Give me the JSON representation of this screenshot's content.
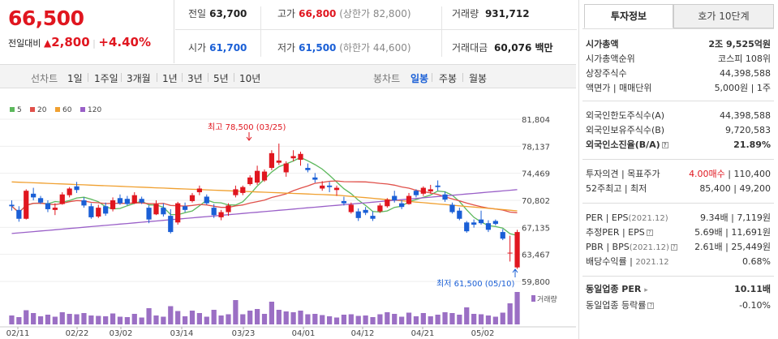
{
  "quote": {
    "price": "66,500",
    "change_label": "전일대비",
    "change_arrow": "▲",
    "change": "2,800",
    "change_pct": "+4.40%",
    "prev_label": "전일",
    "prev": "63,700",
    "high_label": "고가",
    "high": "66,800",
    "upper_limit": "(상한가 82,800)",
    "volume_label": "거래량",
    "volume": "931,712",
    "open_label": "시가",
    "open": "61,700",
    "low_label": "저가",
    "low": "61,500",
    "lower_limit": "(하한가 44,600)",
    "amount_label": "거래대금",
    "amount": "60,076 백만"
  },
  "period_bar": {
    "line_label": "선차트",
    "line_options": [
      "1일",
      "1주일",
      "3개월",
      "1년",
      "3년",
      "5년",
      "10년"
    ],
    "candle_label": "봉차트",
    "candle_options": [
      "일봉",
      "주봉",
      "월봉"
    ],
    "candle_selected": "일봉"
  },
  "chart_data": {
    "type": "candlestick",
    "legend": [
      {
        "name": "5",
        "color": "#5cb85c"
      },
      {
        "name": "20",
        "color": "#e0504a"
      },
      {
        "name": "60",
        "color": "#f0a030"
      },
      {
        "name": "120",
        "color": "#9a60c8"
      }
    ],
    "y_ticks": [
      "81,804",
      "78,137",
      "74,469",
      "70,802",
      "67,135",
      "63,467",
      "59,800"
    ],
    "ylim": [
      59800,
      81804
    ],
    "x_ticks": [
      "02/11",
      "02/22",
      "03/02",
      "03/14",
      "03/23",
      "04/01",
      "04/12",
      "04/21",
      "05/02"
    ],
    "volume_label": "거래량",
    "high_annotation": "최고 78,500 (03/25)",
    "low_annotation": "최저 61,500 (05/10)",
    "candles": [
      [
        70200,
        70800,
        69400,
        70000
      ],
      [
        69500,
        70000,
        67900,
        68300
      ],
      [
        68300,
        72300,
        68200,
        72100
      ],
      [
        71700,
        72500,
        70800,
        71200
      ],
      [
        71100,
        71400,
        70300,
        70500
      ],
      [
        70400,
        70800,
        69200,
        69600
      ],
      [
        69500,
        70400,
        68800,
        69800
      ],
      [
        70300,
        71900,
        70200,
        71600
      ],
      [
        71500,
        72600,
        71200,
        72400
      ],
      [
        72700,
        73300,
        71800,
        72200
      ],
      [
        70800,
        71200,
        69800,
        70100
      ],
      [
        70000,
        70400,
        68300,
        68500
      ],
      [
        68600,
        70200,
        68400,
        69800
      ],
      [
        70000,
        70500,
        68700,
        69000
      ],
      [
        69600,
        71200,
        69300,
        70800
      ],
      [
        71100,
        71600,
        70200,
        70400
      ],
      [
        71000,
        71400,
        70100,
        70300
      ],
      [
        70400,
        71900,
        70300,
        71500
      ],
      [
        71000,
        71300,
        70300,
        70500
      ],
      [
        69800,
        70100,
        67700,
        68200
      ],
      [
        68900,
        70800,
        68800,
        70300
      ],
      [
        69800,
        70400,
        68600,
        68900
      ],
      [
        68700,
        69600,
        66300,
        66500
      ],
      [
        67800,
        70600,
        67500,
        70400
      ],
      [
        70000,
        70500,
        69200,
        69500
      ],
      [
        70700,
        71800,
        70500,
        71500
      ],
      [
        71900,
        72800,
        71500,
        72400
      ],
      [
        71300,
        71600,
        70200,
        70400
      ],
      [
        69800,
        70300,
        68400,
        68800
      ],
      [
        68500,
        69500,
        68100,
        69200
      ],
      [
        69200,
        70400,
        68700,
        70100
      ],
      [
        71500,
        72800,
        71200,
        72300
      ],
      [
        71800,
        72800,
        71500,
        72600
      ],
      [
        73000,
        74200,
        72800,
        73900
      ],
      [
        73200,
        75500,
        72900,
        74800
      ],
      [
        73500,
        75000,
        73300,
        74700
      ],
      [
        75200,
        77600,
        74900,
        77200
      ],
      [
        75900,
        78500,
        75600,
        76200
      ],
      [
        74600,
        76100,
        74000,
        75800
      ],
      [
        76500,
        77600,
        76100,
        76800
      ],
      [
        76300,
        77400,
        75500,
        77100
      ],
      [
        75200,
        75800,
        74600,
        74900
      ],
      [
        73900,
        74500,
        73200,
        73600
      ],
      [
        72400,
        73400,
        72100,
        72800
      ],
      [
        72800,
        73300,
        71900,
        72600
      ],
      [
        72200,
        72800,
        71400,
        72500
      ],
      [
        70700,
        71300,
        70100,
        70400
      ],
      [
        69200,
        70500,
        69000,
        70200
      ],
      [
        69300,
        69700,
        68000,
        68400
      ],
      [
        69500,
        69900,
        68800,
        69100
      ],
      [
        68700,
        69300,
        68000,
        68300
      ],
      [
        69300,
        70400,
        69100,
        70100
      ],
      [
        70000,
        71100,
        69800,
        70900
      ],
      [
        71400,
        72100,
        70500,
        70800
      ],
      [
        70400,
        70800,
        69600,
        69900
      ],
      [
        70300,
        71800,
        70200,
        71400
      ],
      [
        72100,
        72300,
        71200,
        71500
      ],
      [
        71700,
        72700,
        71400,
        72500
      ],
      [
        72000,
        72900,
        71700,
        72300
      ],
      [
        72800,
        73500,
        72100,
        72600
      ],
      [
        71600,
        72000,
        70600,
        70900
      ],
      [
        70200,
        70500,
        69000,
        69200
      ],
      [
        69400,
        69800,
        68100,
        68300
      ],
      [
        67800,
        68000,
        66400,
        66600
      ],
      [
        67800,
        68200,
        67100,
        67500
      ],
      [
        68200,
        69400,
        67500,
        67700
      ],
      [
        67700,
        68100,
        66500,
        66800
      ],
      [
        68000,
        68200,
        67400,
        67600
      ],
      [
        66500,
        66900,
        65400,
        65600
      ],
      [
        63700,
        66000,
        62500,
        63700
      ],
      [
        61700,
        66800,
        61500,
        66500
      ]
    ],
    "volumes": [
      22,
      18,
      35,
      28,
      20,
      24,
      19,
      30,
      26,
      25,
      28,
      22,
      21,
      20,
      27,
      19,
      18,
      26,
      17,
      40,
      22,
      19,
      45,
      33,
      20,
      34,
      28,
      19,
      36,
      22,
      25,
      60,
      25,
      34,
      38,
      26,
      56,
      36,
      32,
      30,
      34,
      25,
      26,
      23,
      20,
      17,
      24,
      25,
      21,
      22,
      18,
      25,
      30,
      26,
      19,
      29,
      20,
      28,
      20,
      24,
      30,
      28,
      24,
      42,
      26,
      25,
      22,
      19,
      29,
      52,
      80
    ]
  },
  "sidebar": {
    "tab_invest": "투자정보",
    "tab_ask": "호가 10단계",
    "market_cap_label": "시가총액",
    "market_cap": "2조 9,525억원",
    "rank_label": "시가총액순위",
    "rank": "코스피 108위",
    "shares_label": "상장주식수",
    "shares": "44,398,588",
    "par_label": "액면가 | 매매단위",
    "par": "5,000원 | 1주",
    "foreign_limit_label": "외국인한도주식수(A)",
    "foreign_limit": "44,398,588",
    "foreign_hold_label": "외국인보유주식수(B)",
    "foreign_hold": "9,720,583",
    "foreign_ratio_label": "외국인소진율(B/A)",
    "foreign_ratio": "21.89%",
    "opinion_label": "투자의견 | 목표주가",
    "opinion_rating": "4.00매수",
    "opinion_target": "110,400",
    "range_label": "52주최고 | 최저",
    "range": "85,400 | 49,200",
    "per_label": "PER | EPS",
    "per_date": "(2021.12)",
    "per": "9.34배",
    "eps": "7,119원",
    "est_label": "추정PER | EPS",
    "est_per": "5.69배",
    "est_eps": "11,691원",
    "pbr_label": "PBR | BPS",
    "pbr_date": "(2021.12)",
    "pbr": "2.61배",
    "bps": "25,449원",
    "div_label": "배당수익률",
    "div_date": "2021.12",
    "div": "0.68%",
    "ind_per_label": "동일업종 PER",
    "ind_per": "10.11배",
    "ind_chg_label": "동일업종 등락률",
    "ind_chg": "-0.10%"
  }
}
